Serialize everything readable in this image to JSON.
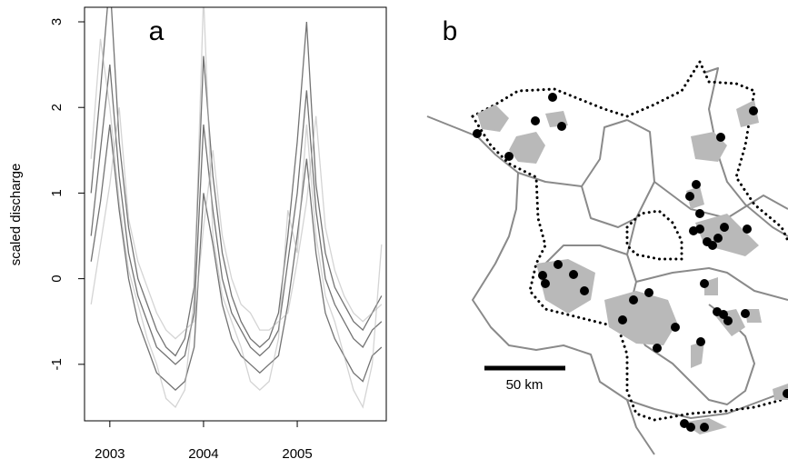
{
  "chart_data": {
    "type": "line",
    "panel_label": "a",
    "ylabel": "scaled discharge",
    "xlim": [
      2002.73,
      2005.95
    ],
    "ylim": [
      -1.66,
      3.17
    ],
    "xticks": [
      2003,
      2004,
      2005
    ],
    "yticks": [
      -1,
      0,
      1,
      2,
      3
    ],
    "x": [
      2002.8,
      2002.9,
      2003.0,
      2003.1,
      2003.2,
      2003.3,
      2003.4,
      2003.5,
      2003.6,
      2003.7,
      2003.8,
      2003.9,
      2004.0,
      2004.1,
      2004.2,
      2004.3,
      2004.4,
      2004.5,
      2004.6,
      2004.7,
      2004.8,
      2004.9,
      2005.0,
      2005.1,
      2005.2,
      2005.3,
      2005.4,
      2005.5,
      2005.6,
      2005.7,
      2005.8,
      2005.9
    ],
    "series": [
      {
        "color": "#000000",
        "values": [
          0.5,
          1.5,
          2.5,
          1.2,
          0.3,
          -0.2,
          -0.5,
          -0.8,
          -0.9,
          -1.0,
          -0.9,
          -0.4,
          1.8,
          0.8,
          0.0,
          -0.4,
          -0.6,
          -0.8,
          -0.9,
          -0.8,
          -0.6,
          0.2,
          1.0,
          2.2,
          0.8,
          0.0,
          -0.3,
          -0.5,
          -0.7,
          -0.8,
          -0.6,
          -0.5
        ]
      },
      {
        "color": "#000000",
        "values": [
          1.0,
          2.2,
          3.5,
          1.6,
          0.6,
          0.0,
          -0.3,
          -0.6,
          -0.8,
          -0.9,
          -0.7,
          -0.1,
          2.6,
          1.2,
          0.3,
          -0.2,
          -0.5,
          -0.7,
          -0.8,
          -0.7,
          -0.4,
          0.5,
          1.6,
          3.0,
          1.1,
          0.3,
          -0.1,
          -0.3,
          -0.5,
          -0.6,
          -0.4,
          -0.2
        ]
      },
      {
        "color": "#000000",
        "values": [
          0.2,
          0.9,
          1.8,
          0.8,
          0.0,
          -0.5,
          -0.8,
          -1.1,
          -1.2,
          -1.3,
          -1.2,
          -0.8,
          1.0,
          0.4,
          -0.3,
          -0.7,
          -0.9,
          -1.0,
          -1.1,
          -1.0,
          -0.9,
          -0.3,
          0.5,
          1.4,
          0.3,
          -0.4,
          -0.7,
          -0.9,
          -1.1,
          -1.2,
          -0.9,
          -0.8
        ]
      },
      {
        "color": "#b0b0b0",
        "values": [
          1.4,
          2.8,
          2.0,
          0.9,
          0.1,
          -0.3,
          -0.7,
          -1.0,
          -1.4,
          -1.5,
          -1.3,
          -0.2,
          3.3,
          0.5,
          -0.2,
          -0.5,
          -0.8,
          -1.2,
          -1.3,
          -1.2,
          -0.7,
          0.8,
          0.3,
          1.8,
          0.5,
          -0.2,
          -0.5,
          -0.9,
          -1.3,
          -1.5,
          -1.0,
          0.4
        ]
      },
      {
        "color": "#b0b0b0",
        "values": [
          -0.3,
          0.4,
          1.1,
          2.0,
          0.7,
          0.2,
          -0.1,
          -0.4,
          -0.6,
          -0.7,
          -0.6,
          -0.5,
          0.6,
          1.5,
          0.5,
          0.0,
          -0.3,
          -0.4,
          -0.6,
          -0.6,
          -0.5,
          -0.4,
          0.2,
          0.9,
          1.9,
          0.6,
          0.1,
          -0.2,
          -0.4,
          -0.5,
          -0.4,
          -0.3
        ]
      }
    ]
  },
  "map": {
    "panel_label": "b",
    "scale_label": "50 km"
  }
}
